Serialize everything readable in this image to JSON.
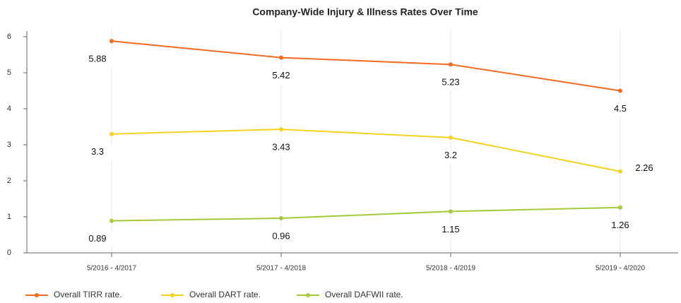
{
  "chart_data": {
    "type": "line",
    "title": "Company-Wide Injury & Illness Rates Over Time",
    "categories": [
      "5/2016 - 4/2017",
      "5/2017 - 4/2018",
      "5/2018 - 4/2019",
      "5/2019 - 4/2020"
    ],
    "series": [
      {
        "name": "Overall TIRR rate.",
        "color": "#f26b21",
        "values": [
          5.88,
          5.42,
          5.23,
          4.5
        ]
      },
      {
        "name": "Overall DART rate.",
        "color": "#f5d21e",
        "values": [
          3.3,
          3.43,
          3.2,
          2.26
        ]
      },
      {
        "name": "Overall DAFWII rate.",
        "color": "#a5c93a",
        "values": [
          0.89,
          0.96,
          1.15,
          1.26
        ]
      }
    ],
    "ylim": [
      0,
      6
    ],
    "yticks": [
      0,
      1,
      2,
      3,
      4,
      5,
      6
    ],
    "grid": true,
    "legend": "bottom"
  }
}
